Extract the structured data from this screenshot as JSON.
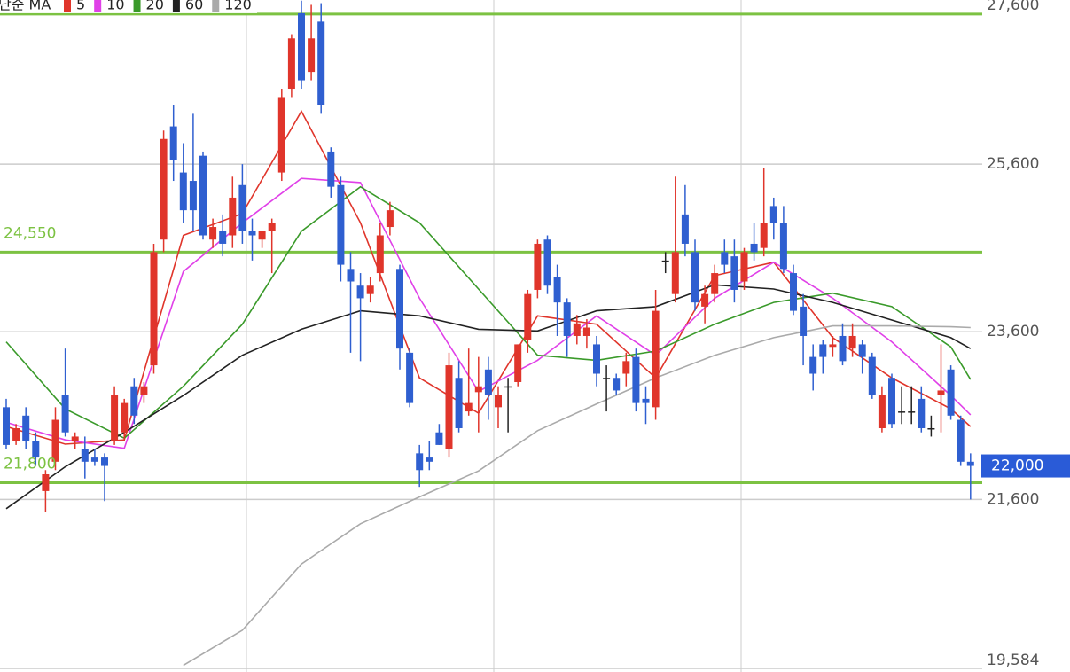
{
  "chart_data": {
    "type": "candlestick",
    "legend_title": "단순 MA",
    "up_color": "#e0352b",
    "down_color": "#2f5fd0",
    "ylim": [
      19584,
      27600
    ],
    "yticks": [
      {
        "value": 19584,
        "label": "19,584"
      },
      {
        "value": 21600,
        "label": "21,600"
      },
      {
        "value": 23600,
        "label": "23,600"
      },
      {
        "value": 25600,
        "label": "25,600"
      },
      {
        "value": 27600,
        "label": "27,600"
      }
    ],
    "grid": true,
    "levels": [
      27390,
      {
        "value": 24550,
        "label": "24,550"
      },
      {
        "value": 21800,
        "label": "21,800"
      }
    ],
    "level_color": "#7cc242",
    "current_price": 22000,
    "current_price_label": "22,000",
    "current_price_color": "#2a5bd7",
    "open": [
      22700,
      22300,
      22600,
      22300,
      21700,
      22050,
      22850,
      22300,
      22200,
      22100,
      22100,
      22300,
      22400,
      22950,
      22850,
      23200,
      24700,
      26050,
      25500,
      25400,
      25700,
      24700,
      24800,
      24750,
      25350,
      24800,
      24700,
      24800,
      25500,
      26500,
      27400,
      26700,
      27300,
      25750,
      25350,
      24350,
      24150,
      24050,
      24300,
      24850,
      24350,
      23350,
      22150,
      22100,
      22400,
      22200,
      23050,
      22650,
      22880,
      23150,
      22700,
      22950,
      23000,
      23500,
      24100,
      24700,
      24250,
      23950,
      23550,
      23550,
      23450,
      23050,
      23050,
      23100,
      23300,
      22800,
      22700,
      24450,
      24050,
      25000,
      24550,
      23900,
      24050,
      24550,
      24500,
      24200,
      24650,
      24600,
      25100,
      24900,
      24300,
      23900,
      23300,
      23450,
      23420,
      23550,
      23400,
      23450,
      23300,
      22450,
      23050,
      22650,
      22650,
      22800,
      22450,
      22850,
      23150,
      22550,
      22050
    ],
    "high": [
      22800,
      22500,
      22700,
      22400,
      21950,
      22700,
      23400,
      22400,
      22350,
      22200,
      22150,
      22950,
      22800,
      23050,
      23000,
      24650,
      26000,
      26300,
      25850,
      26200,
      25750,
      24950,
      25000,
      25450,
      25600,
      24950,
      24800,
      24950,
      26500,
      27150,
      27550,
      27500,
      27520,
      25800,
      25450,
      24550,
      24300,
      24250,
      24900,
      25150,
      24400,
      23400,
      22250,
      22300,
      22500,
      23350,
      23250,
      23400,
      23300,
      23300,
      22950,
      23050,
      23450,
      24100,
      24700,
      24750,
      24400,
      24000,
      23800,
      23750,
      23550,
      23200,
      23100,
      23350,
      23400,
      22950,
      24100,
      24550,
      25450,
      25350,
      24700,
      24150,
      24400,
      24700,
      24700,
      24600,
      24900,
      25550,
      25200,
      25100,
      24400,
      24050,
      23450,
      23500,
      23550,
      23700,
      23700,
      23500,
      23350,
      22950,
      23100,
      22950,
      22950,
      22950,
      22600,
      23450,
      23200,
      22600,
      22150
    ],
    "low": [
      22200,
      22250,
      22200,
      22000,
      21450,
      21950,
      22350,
      22200,
      21850,
      22000,
      21580,
      22250,
      22300,
      22500,
      22750,
      23100,
      24550,
      25400,
      24900,
      24800,
      24700,
      24600,
      24500,
      24600,
      24650,
      24450,
      24600,
      24300,
      25400,
      26400,
      26500,
      26600,
      26200,
      25200,
      24200,
      23350,
      23250,
      23950,
      24200,
      24750,
      23150,
      22700,
      21750,
      21950,
      22250,
      22100,
      22400,
      22600,
      22400,
      22550,
      22450,
      22400,
      22950,
      23350,
      24000,
      24050,
      23550,
      23300,
      23450,
      23400,
      22950,
      22650,
      22850,
      22950,
      22650,
      22500,
      22550,
      24300,
      23950,
      24500,
      23850,
      23700,
      23950,
      24300,
      23950,
      24100,
      24450,
      24500,
      24700,
      24300,
      23800,
      23200,
      22900,
      23100,
      23300,
      23200,
      23300,
      23100,
      22800,
      22400,
      22450,
      22500,
      22500,
      22400,
      22350,
      22400,
      22550,
      22000,
      21600
    ],
    "close": [
      22250,
      22450,
      22300,
      22100,
      21900,
      22550,
      22400,
      22350,
      22050,
      22050,
      22000,
      22850,
      22750,
      22600,
      22950,
      24550,
      25900,
      25650,
      25050,
      25050,
      24750,
      24850,
      24650,
      25200,
      24800,
      24750,
      24800,
      24900,
      26400,
      27100,
      26600,
      27100,
      26300,
      25330,
      24400,
      24200,
      24000,
      24150,
      24750,
      25050,
      23400,
      22750,
      21950,
      22050,
      22250,
      23200,
      22450,
      22750,
      22950,
      22850,
      22850,
      22950,
      23450,
      24050,
      24650,
      24150,
      23950,
      23550,
      23700,
      23650,
      23100,
      23050,
      22900,
      23250,
      22750,
      22750,
      23850,
      24450,
      24550,
      24650,
      23950,
      24050,
      24300,
      24400,
      24100,
      24550,
      24550,
      24900,
      24900,
      24350,
      23850,
      23550,
      23100,
      23300,
      23450,
      23250,
      23550,
      23300,
      22850,
      22850,
      22500,
      22650,
      22650,
      22450,
      22450,
      22900,
      22600,
      22050,
      22000
    ],
    "series": [
      {
        "name": "5",
        "color": "#e0352b",
        "x": [
          0,
          6,
          12,
          18,
          24,
          30,
          36,
          42,
          48,
          54,
          60,
          66,
          72,
          78,
          84,
          90,
          96,
          98
        ],
        "values": [
          22470,
          22260,
          22310,
          24750,
          25010,
          26230,
          24900,
          23050,
          22630,
          23790,
          23690,
          23050,
          24270,
          24430,
          23530,
          23050,
          22680,
          22470
        ]
      },
      {
        "name": "10",
        "color": "#e040e8",
        "x": [
          0,
          6,
          12,
          18,
          24,
          30,
          36,
          42,
          48,
          54,
          60,
          66,
          72,
          78,
          84,
          90,
          96,
          98
        ],
        "values": [
          22520,
          22310,
          22210,
          24320,
          24900,
          25430,
          25380,
          24000,
          22890,
          23260,
          23790,
          23320,
          24000,
          24430,
          24000,
          23480,
          22840,
          22610
        ]
      },
      {
        "name": "20",
        "color": "#3a9a2a",
        "x": [
          0,
          6,
          12,
          18,
          24,
          30,
          36,
          42,
          48,
          54,
          60,
          66,
          72,
          78,
          84,
          90,
          96,
          98
        ],
        "values": [
          23480,
          22680,
          22330,
          22950,
          23690,
          24800,
          25330,
          24900,
          24110,
          23320,
          23260,
          23370,
          23690,
          23950,
          24060,
          23900,
          23420,
          23030
        ]
      },
      {
        "name": "60",
        "color": "#222222",
        "x": [
          0,
          6,
          12,
          18,
          24,
          30,
          36,
          42,
          48,
          54,
          60,
          66,
          72,
          78,
          84,
          90,
          96,
          98
        ],
        "values": [
          21490,
          21990,
          22400,
          22840,
          23320,
          23630,
          23850,
          23790,
          23630,
          23610,
          23850,
          23900,
          24160,
          24110,
          23950,
          23740,
          23530,
          23400
        ]
      },
      {
        "name": "120",
        "color": "#aaaaaa",
        "x": [
          18,
          24,
          30,
          36,
          42,
          48,
          54,
          60,
          66,
          72,
          78,
          84,
          90,
          96,
          98
        ],
        "values": [
          19620,
          20040,
          20830,
          21310,
          21630,
          21940,
          22420,
          22740,
          23050,
          23320,
          23530,
          23670,
          23670,
          23660,
          23650
        ]
      }
    ]
  }
}
